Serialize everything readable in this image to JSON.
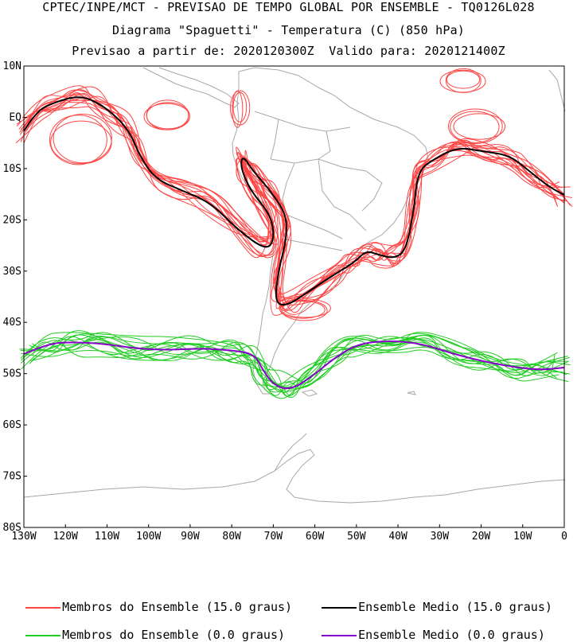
{
  "header": {
    "line1": "CPTEC/INPE/MCT - PREVISAO DE TEMPO GLOBAL POR ENSEMBLE - TQ0126L028",
    "line2": "Diagrama \"Spaguetti\" - Temperatura (C) (850 hPa)",
    "line3": "Previsao a partir de: 2020120300Z  Valido para: 2020121400Z"
  },
  "map": {
    "lon_range": [
      -130,
      0
    ],
    "lat_range": [
      -80,
      10
    ],
    "lat_labels": [
      "10N",
      "EQ",
      "10S",
      "20S",
      "30S",
      "40S",
      "50S",
      "60S",
      "70S",
      "80S"
    ],
    "lon_labels": [
      "130W",
      "120W",
      "110W",
      "100W",
      "90W",
      "80W",
      "70W",
      "60W",
      "50W",
      "40W",
      "30W",
      "20W",
      "10W",
      "0"
    ]
  },
  "legend": {
    "items": [
      {
        "label": "Membros do Ensemble (15.0 graus)",
        "color": "#ff4444"
      },
      {
        "label": "Ensemble Medio (15.0 graus)",
        "color": "#000000"
      },
      {
        "label": "Membros do Ensemble (0.0 graus)",
        "color": "#22cc22"
      },
      {
        "label": "Ensemble Medio (0.0 graus)",
        "color": "#8800cc"
      }
    ]
  },
  "colors": {
    "coast": "#a8a8a8",
    "member_15": "#ff4444",
    "mean_15": "#000000",
    "member_0": "#22cc22",
    "mean_0": "#8800cc"
  }
}
